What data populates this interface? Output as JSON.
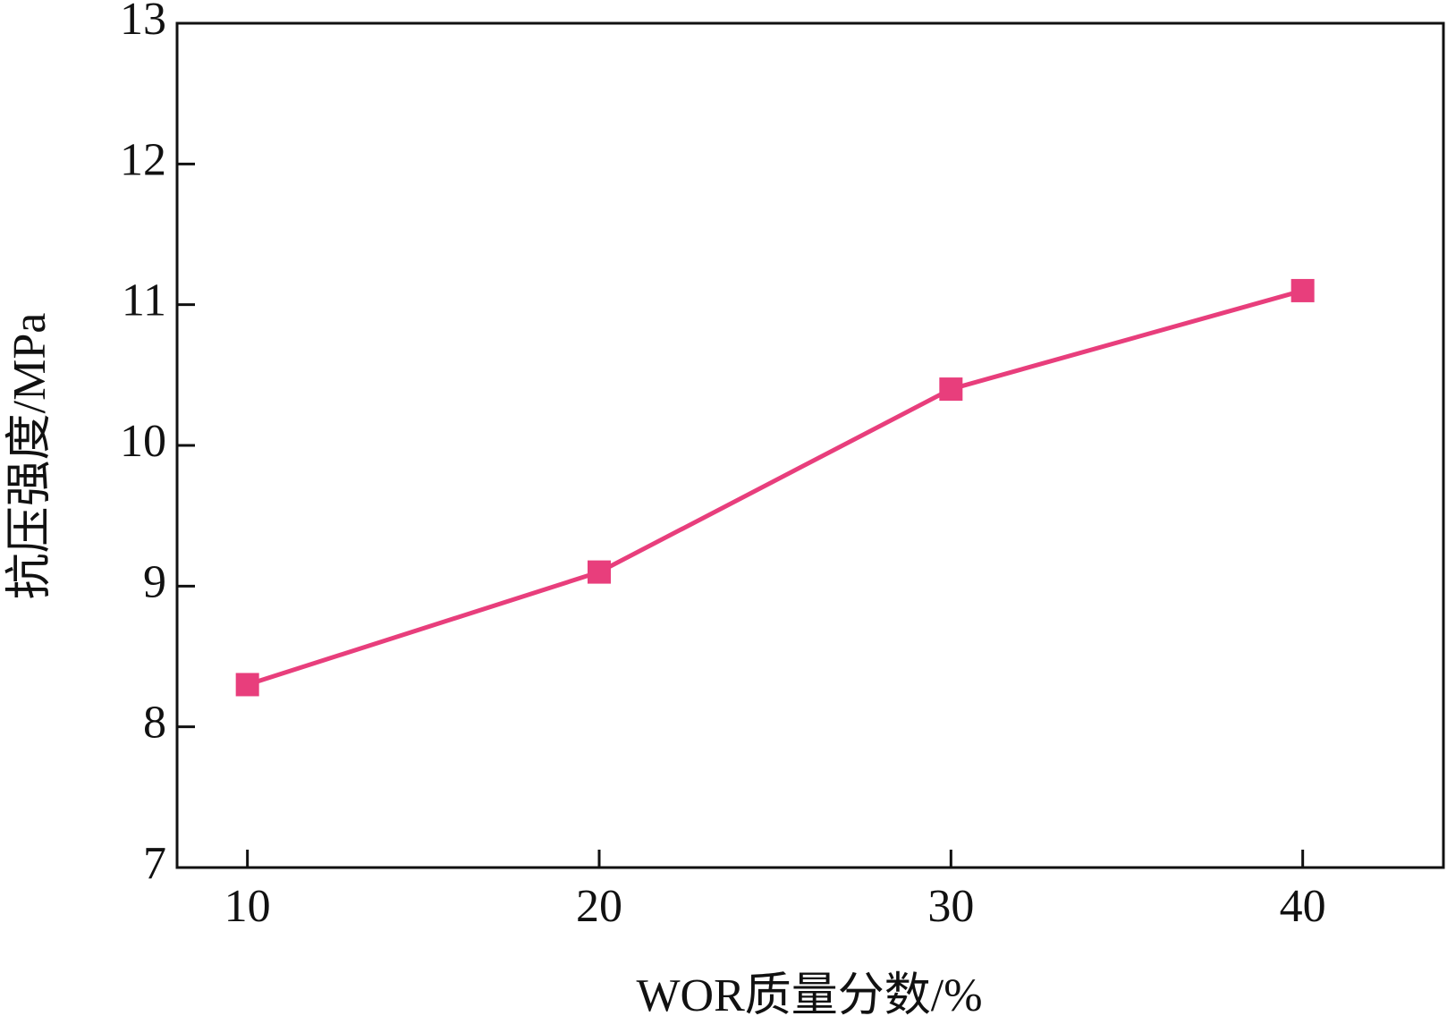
{
  "chart_data": {
    "type": "line",
    "x_label": "WOR质量分数/%",
    "y_label": "抗压强度/MPa",
    "x": [
      10,
      20,
      30,
      40
    ],
    "series": [
      {
        "name": "抗压强度",
        "color": "#e83e7c",
        "values": [
          8.3,
          9.1,
          10.4,
          11.1
        ]
      }
    ],
    "xlim": [
      8,
      44
    ],
    "xticks": [
      10,
      20,
      30,
      40
    ],
    "ylim": [
      7,
      13
    ],
    "yticks": [
      7,
      8,
      9,
      10,
      11,
      12,
      13
    ],
    "grid": false,
    "marker": "square"
  }
}
